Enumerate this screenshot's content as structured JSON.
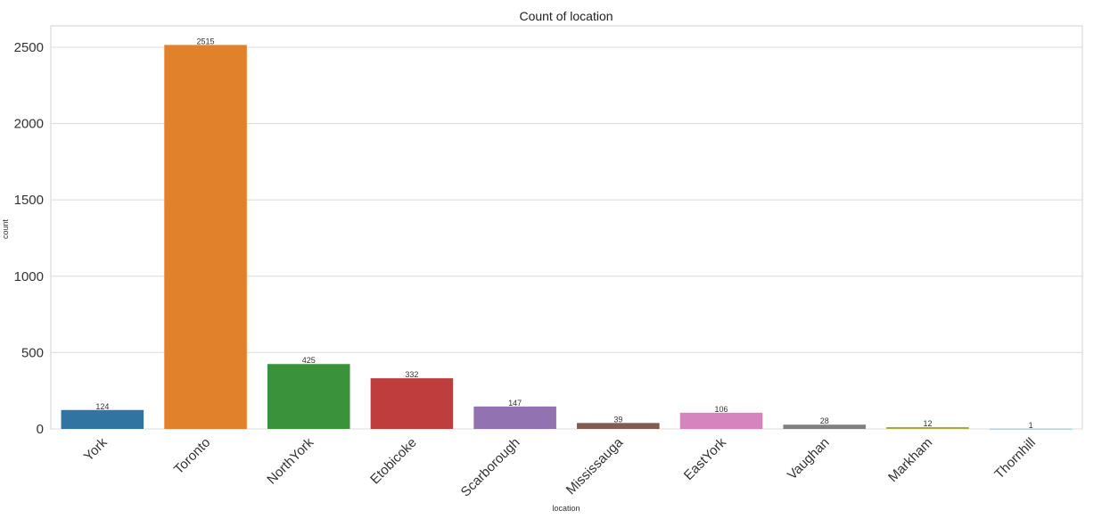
{
  "chart_data": {
    "type": "bar",
    "title": "Count of location",
    "xlabel": "location",
    "ylabel": "count",
    "categories": [
      "York",
      "Toronto",
      "NorthYork",
      "Etobicoke",
      "Scarborough",
      "Mississauga",
      "EastYork",
      "Vaughan",
      "Markham",
      "Thornhill"
    ],
    "values": [
      124,
      2515,
      425,
      332,
      147,
      39,
      106,
      28,
      12,
      1
    ],
    "data_labels": [
      "124",
      "2515",
      "425",
      "332",
      "147",
      "39",
      "106",
      "28",
      "12",
      "1"
    ],
    "colors": [
      "#3274a1",
      "#e1812c",
      "#3a923a",
      "#c03d3e",
      "#9372b2",
      "#845b53",
      "#d684bd",
      "#7f7f7f",
      "#a9aa35",
      "#2eb4c6"
    ],
    "yticks": [
      0,
      500,
      1000,
      1500,
      2000,
      2500
    ],
    "ylim": [
      0,
      2640
    ],
    "grid": true,
    "legend": "none"
  }
}
